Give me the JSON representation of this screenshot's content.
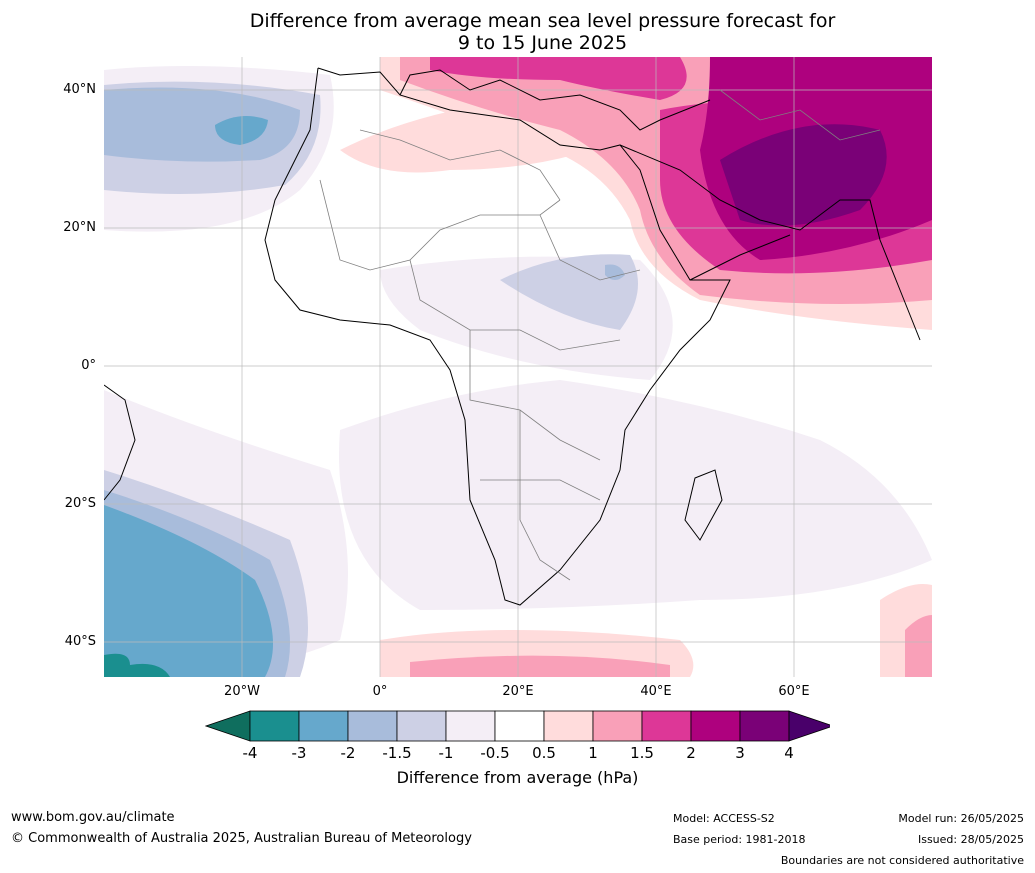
{
  "title": {
    "line1": "Difference from average mean sea level pressure forecast for",
    "line2": "9 to 15 June 2025"
  },
  "map": {
    "lat_labels": [
      "40°N",
      "20°N",
      "0°",
      "20°S",
      "40°S"
    ],
    "lon_labels": [
      "20°W",
      "0°",
      "20°E",
      "40°E",
      "60°E"
    ]
  },
  "colorbar": {
    "ticks": [
      "-4",
      "-3",
      "-2",
      "-1.5",
      "-1",
      "-0.5",
      "0.5",
      "1",
      "1.5",
      "2",
      "3",
      "4"
    ],
    "colors": [
      "#1a8f8f",
      "#66a8cc",
      "#a8bcdb",
      "#cdd0e5",
      "#f4eef6",
      "#ffffff",
      "#ffdcdc",
      "#f9a0b8",
      "#dd3797",
      "#ae017e",
      "#7a0177"
    ],
    "under_color": "#0f6e5e",
    "over_color": "#49006a",
    "label": "Difference from average (hPa)"
  },
  "footer": {
    "website": "www.bom.gov.au/climate",
    "copyright": "© Commonwealth of Australia 2025, Australian Bureau of Meteorology",
    "model": "Model: ACCESS-S2",
    "base_period": "Base period: 1981-2018",
    "model_run": "Model run: 26/05/2025",
    "issued": "Issued: 28/05/2025",
    "disclaimer": "Boundaries are not considered authoritative"
  }
}
